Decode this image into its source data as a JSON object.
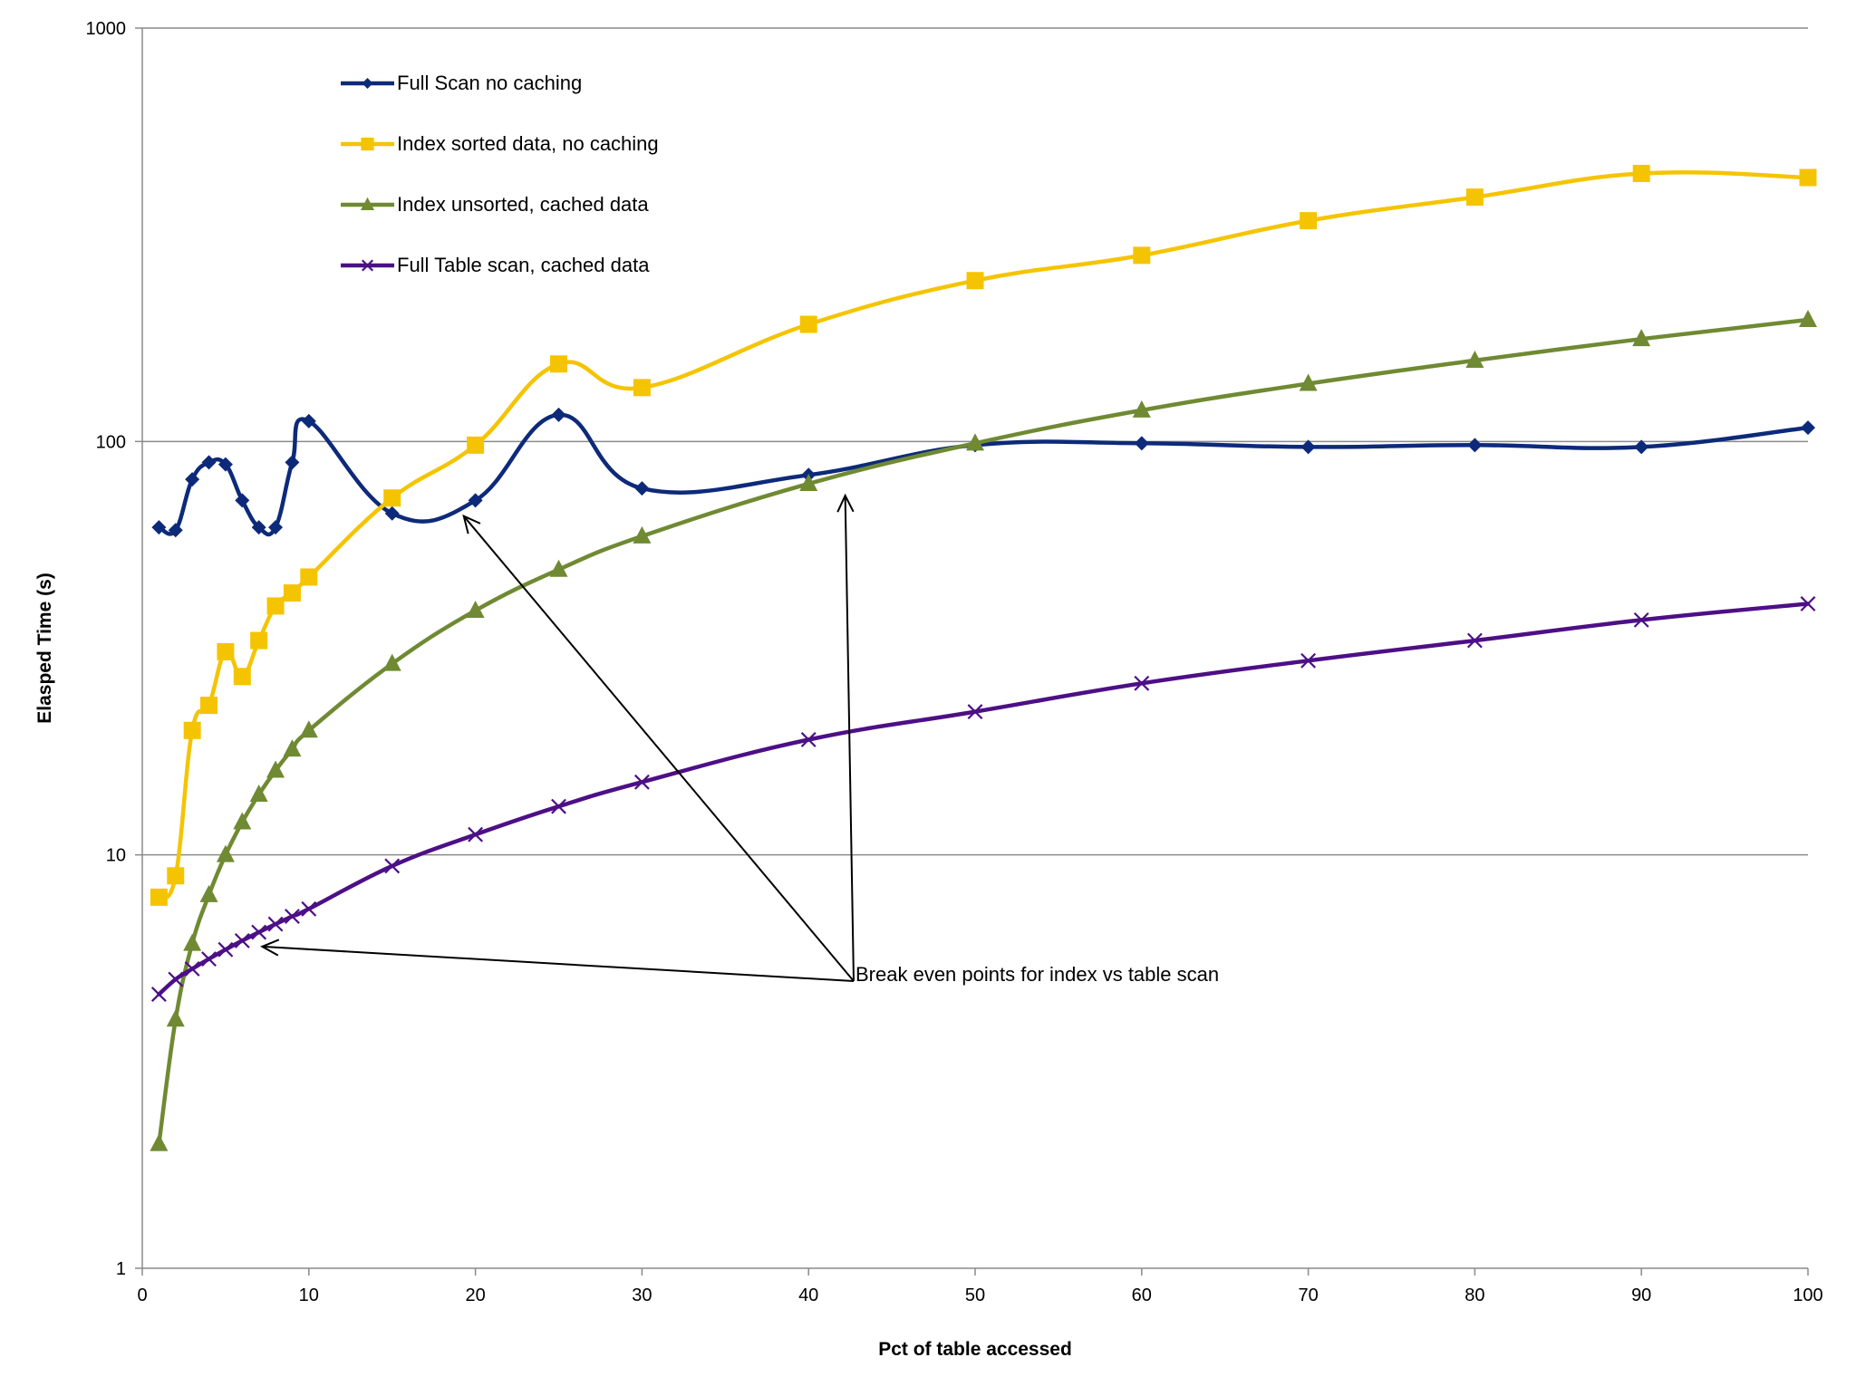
{
  "chart_data": {
    "type": "line",
    "title": "",
    "xlabel": "Pct of table accessed",
    "ylabel": "Elasped Time (s)",
    "xlim": [
      0,
      100
    ],
    "ylim": [
      1,
      1000
    ],
    "yscale": "log",
    "grid": true,
    "legend_position": "top-left",
    "x_ticks": [
      "0",
      "10",
      "20",
      "30",
      "40",
      "50",
      "60",
      "70",
      "80",
      "90",
      "100"
    ],
    "y_ticks": [
      "1",
      "10",
      "100",
      "1000"
    ],
    "series": [
      {
        "name": "Full Scan no caching",
        "color": "#0d2a7a",
        "marker": "diamond",
        "x": [
          1,
          2,
          3,
          4,
          5,
          6,
          7,
          8,
          9,
          10,
          15,
          20,
          25,
          30,
          40,
          50,
          60,
          70,
          80,
          90,
          100
        ],
        "values": [
          62,
          61,
          81,
          89,
          88,
          72,
          62,
          62,
          89,
          112,
          67,
          72,
          116,
          77,
          83,
          98,
          99,
          97,
          98,
          97,
          108
        ]
      },
      {
        "name": "Index sorted data, no caching",
        "color": "#f5c400",
        "marker": "square",
        "x": [
          1,
          2,
          3,
          4,
          5,
          6,
          7,
          8,
          9,
          10,
          15,
          20,
          25,
          30,
          40,
          50,
          60,
          70,
          80,
          90,
          100
        ],
        "values": [
          7.9,
          8.9,
          20,
          23,
          31,
          27,
          33,
          40,
          43,
          47,
          73,
          98,
          154,
          135,
          192,
          245,
          282,
          342,
          390,
          445,
          435
        ]
      },
      {
        "name": "Index unsorted, cached data",
        "color": "#6f8a32",
        "marker": "triangle",
        "x": [
          1,
          2,
          3,
          4,
          5,
          6,
          7,
          8,
          9,
          10,
          15,
          20,
          25,
          30,
          40,
          50,
          60,
          70,
          80,
          90,
          100
        ],
        "values": [
          2.0,
          4.0,
          6.1,
          8.0,
          10.0,
          12.0,
          14.0,
          16.0,
          18.0,
          20.0,
          29.0,
          39.0,
          49.0,
          59.0,
          79.0,
          99.0,
          119.0,
          138.0,
          157.0,
          177.0,
          197.0
        ]
      },
      {
        "name": "Full Table scan, cached data",
        "color": "#4d0f86",
        "marker": "x",
        "x": [
          1,
          2,
          3,
          4,
          5,
          6,
          7,
          8,
          9,
          10,
          15,
          20,
          25,
          30,
          40,
          50,
          60,
          70,
          80,
          90,
          100
        ],
        "values": [
          4.6,
          5.0,
          5.3,
          5.6,
          5.9,
          6.2,
          6.5,
          6.8,
          7.1,
          7.4,
          9.4,
          11.2,
          13.1,
          15.0,
          19.0,
          22.2,
          26.0,
          29.5,
          33.0,
          37.0,
          40.5
        ]
      }
    ],
    "annotations": [
      {
        "text": "Break even points for index vs table scan"
      }
    ]
  }
}
